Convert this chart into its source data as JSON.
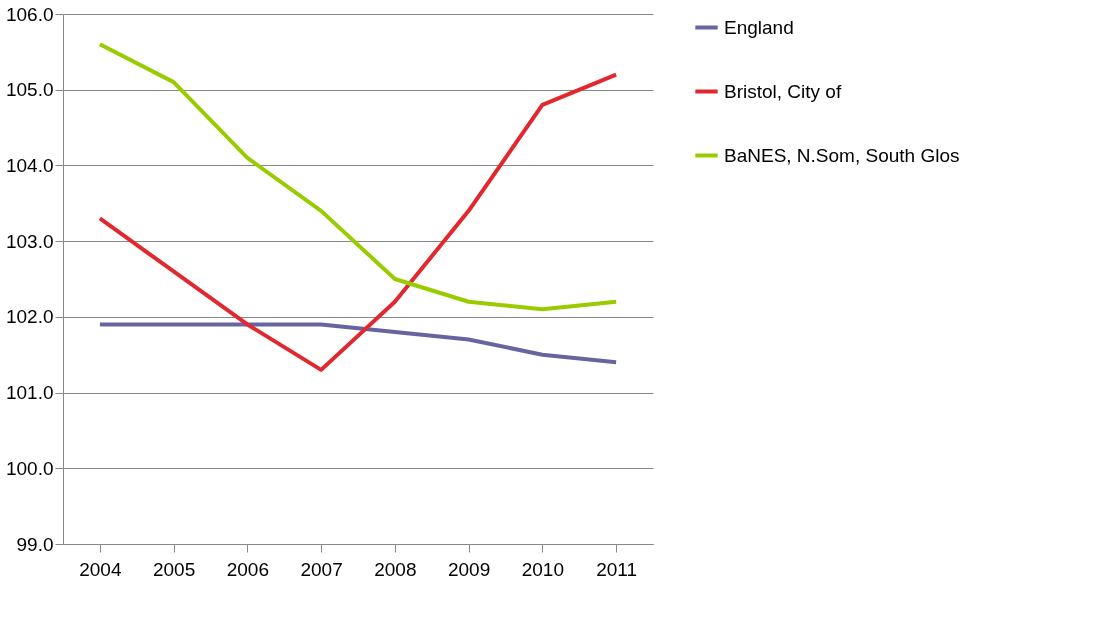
{
  "chart_data": {
    "type": "line",
    "categories": [
      "2004",
      "2005",
      "2006",
      "2007",
      "2008",
      "2009",
      "2010",
      "2011"
    ],
    "series": [
      {
        "name": "England",
        "color": "#6665a0",
        "values": [
          101.9,
          101.9,
          101.9,
          101.9,
          101.8,
          101.7,
          101.5,
          101.4
        ]
      },
      {
        "name": "Bristol, City of",
        "color": "#e0282e",
        "values": [
          103.3,
          102.6,
          101.9,
          101.3,
          102.2,
          103.4,
          104.8,
          105.2
        ]
      },
      {
        "name": "BaNES, N.Som, South Glos",
        "color": "#99cc00",
        "values": [
          105.6,
          105.1,
          104.1,
          103.4,
          102.5,
          102.2,
          102.1,
          102.2
        ]
      }
    ],
    "ylim": [
      99,
      106
    ],
    "yticks": [
      {
        "value": 99,
        "label": "99.0"
      },
      {
        "value": 100,
        "label": "100.0"
      },
      {
        "value": 101,
        "label": "101.0"
      },
      {
        "value": 102,
        "label": "102.0"
      },
      {
        "value": 103,
        "label": "103.0"
      },
      {
        "value": 104,
        "label": "104.0"
      },
      {
        "value": 105,
        "label": "105.0"
      },
      {
        "value": 106,
        "label": "106.0"
      }
    ],
    "grid": "y",
    "legend": "right",
    "marker": "none",
    "line_style": "solid"
  }
}
